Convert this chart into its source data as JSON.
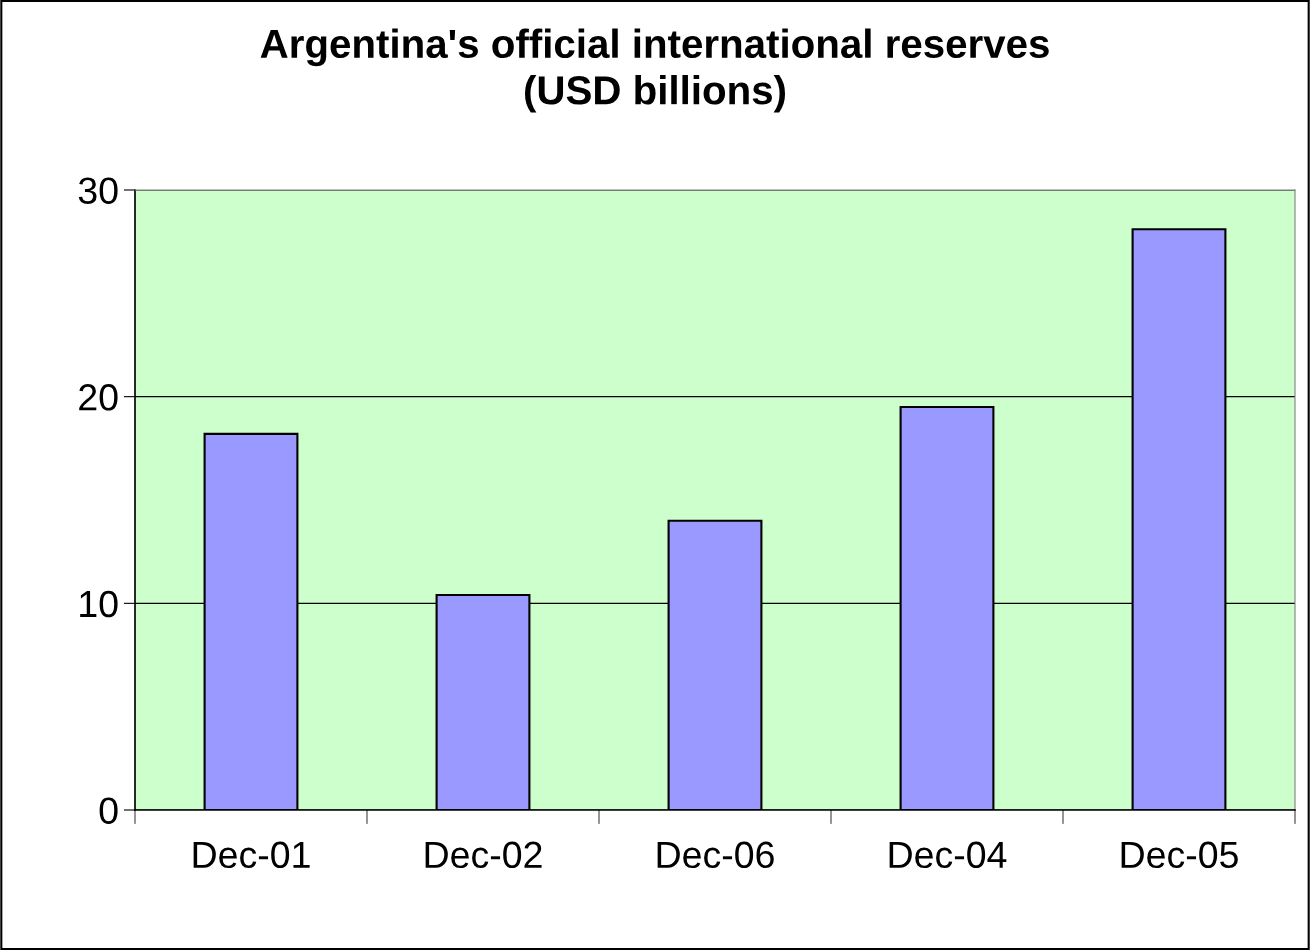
{
  "chart_data": {
    "type": "bar",
    "title": "Argentina's official international reserves\n(USD billions)",
    "categories": [
      "Dec-01",
      "Dec-02",
      "Dec-06",
      "Dec-04",
      "Dec-05"
    ],
    "values": [
      18.2,
      10.4,
      14.0,
      19.5,
      28.1
    ],
    "color": "#9999ff",
    "ylim": [
      0,
      30
    ],
    "yticks": [
      0,
      10,
      20,
      30
    ],
    "grid": "y",
    "legend": false
  }
}
